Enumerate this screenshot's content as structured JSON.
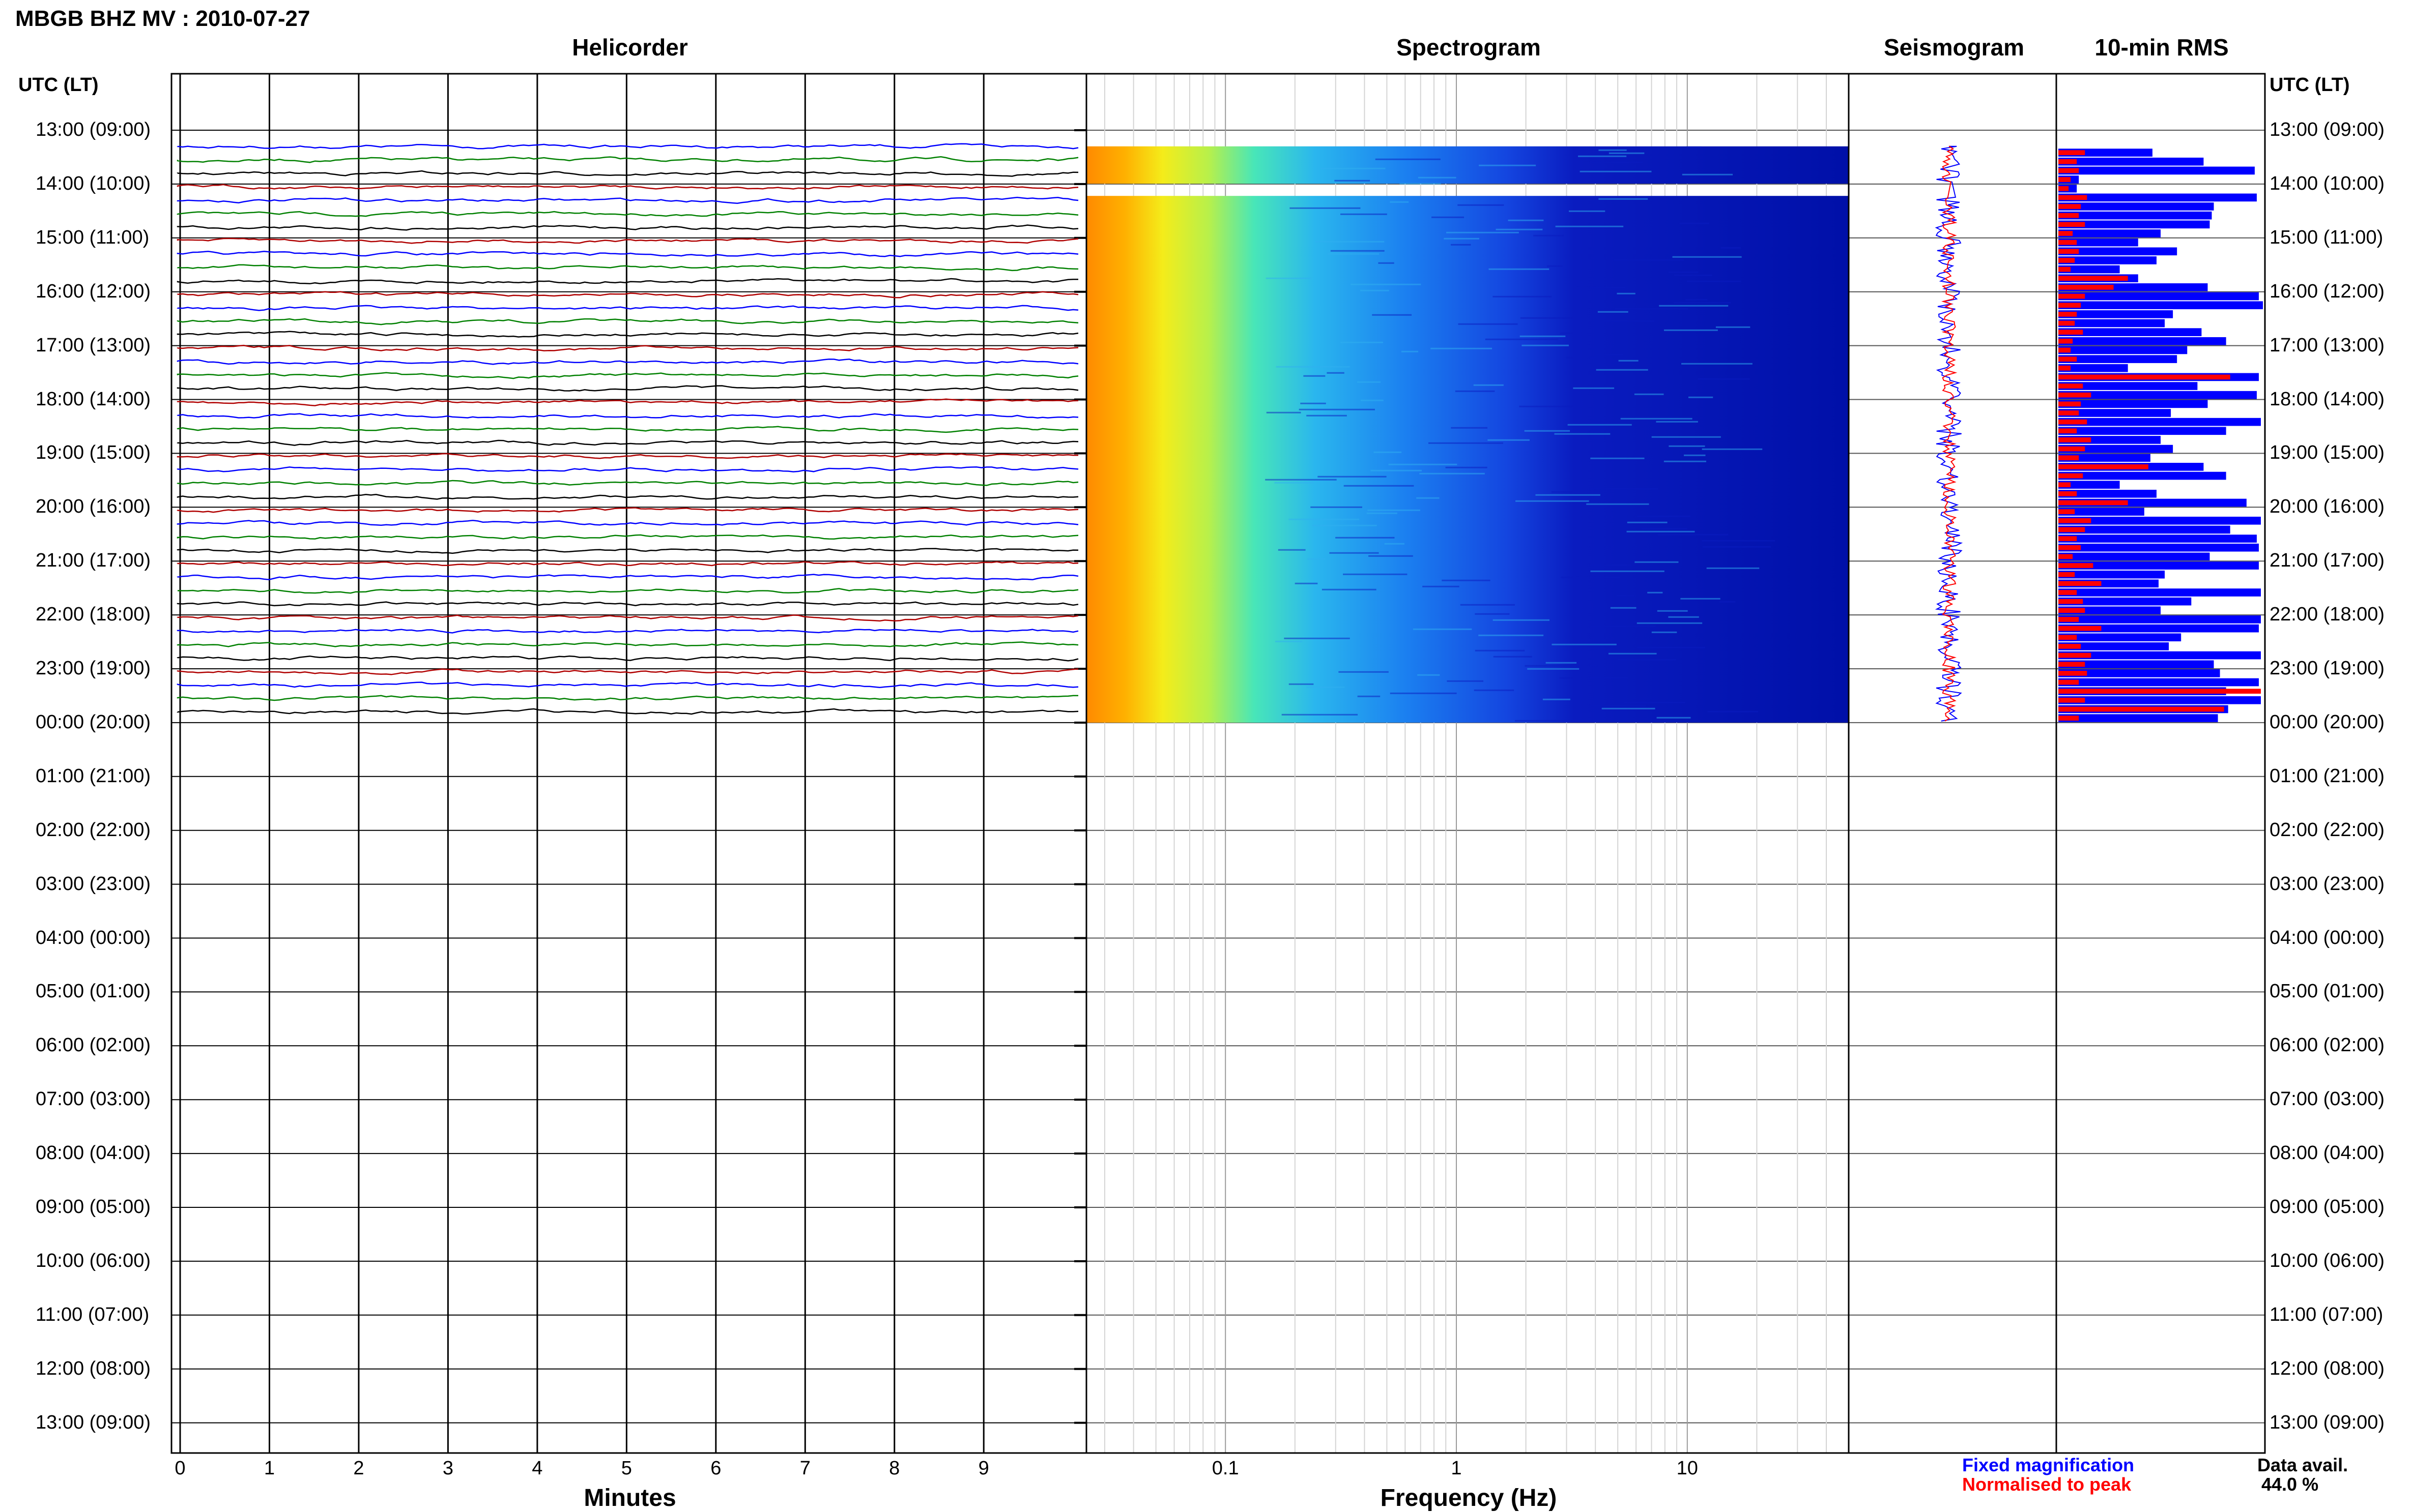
{
  "title": "MBGB BHZ MV : 2010-07-27",
  "panels": {
    "helicorder": "Helicorder",
    "spectrogram": "Spectrogram",
    "seismogram": "Seismogram",
    "rms": "10-min RMS"
  },
  "time_axis": {
    "label_left": "UTC (LT)",
    "label_right": "UTC (LT)",
    "ticks": [
      "13:00 (09:00)",
      "14:00 (10:00)",
      "15:00 (11:00)",
      "16:00 (12:00)",
      "17:00 (13:00)",
      "18:00 (14:00)",
      "19:00 (15:00)",
      "20:00 (16:00)",
      "21:00 (17:00)",
      "22:00 (18:00)",
      "23:00 (19:00)",
      "00:00 (20:00)",
      "01:00 (21:00)",
      "02:00 (22:00)",
      "03:00 (23:00)",
      "04:00 (00:00)",
      "05:00 (01:00)",
      "06:00 (02:00)",
      "07:00 (03:00)",
      "08:00 (04:00)",
      "09:00 (05:00)",
      "10:00 (06:00)",
      "11:00 (07:00)",
      "12:00 (08:00)",
      "13:00 (09:00)"
    ]
  },
  "helicorder_axis": {
    "xlabel": "Minutes",
    "ticks": [
      "0",
      "1",
      "2",
      "3",
      "4",
      "5",
      "6",
      "7",
      "8",
      "9"
    ],
    "trace_colors": [
      "#0000ff",
      "#008000",
      "#000000",
      "#b00000"
    ]
  },
  "spectrogram_axis": {
    "xlabel": "Frequency (Hz)",
    "ticks": [
      "0.1",
      "1",
      "10"
    ],
    "scale": "log",
    "range_hz": [
      0.025,
      50
    ]
  },
  "legend": {
    "fixed": "Fixed magnification",
    "fixed_color": "#0000ff",
    "normalised": "Normalised to peak",
    "normalised_color": "#ff0000",
    "avail_label": "Data avail.",
    "avail_value": "44.0 %"
  },
  "chart_data": {
    "type": "helicorder",
    "station": "MBGB BHZ MV",
    "date": "2010-07-27",
    "data_start_hour": 13.3,
    "data_end_hour": 24.0,
    "gap_hour": 14.05,
    "rms_fixed": [
      0.46,
      0.71,
      0.96,
      0.1,
      0.09,
      0.97,
      0.76,
      0.75,
      0.74,
      0.5,
      0.39,
      0.58,
      0.48,
      0.3,
      0.39,
      0.73,
      0.98,
      1.0,
      0.56,
      0.52,
      0.7,
      0.82,
      0.63,
      0.58,
      0.34,
      0.98,
      0.68,
      0.97,
      0.73,
      0.55,
      0.99,
      0.82,
      0.5,
      0.56,
      0.45,
      0.71,
      0.82,
      0.3,
      0.48,
      0.92,
      0.42,
      0.99,
      0.84,
      0.97,
      0.98,
      0.74,
      0.98,
      0.52,
      0.49,
      0.99,
      0.65,
      0.5,
      0.99,
      0.98,
      0.6,
      0.54,
      0.99,
      0.76,
      0.79,
      0.98,
      0.82,
      0.99,
      0.83,
      0.78
    ],
    "rms_normalised": [
      0.13,
      0.09,
      0.1,
      0.06,
      0.05,
      0.14,
      0.11,
      0.1,
      0.13,
      0.07,
      0.09,
      0.1,
      0.08,
      0.06,
      0.34,
      0.27,
      0.13,
      0.11,
      0.09,
      0.08,
      0.12,
      0.07,
      0.06,
      0.09,
      0.06,
      0.84,
      0.12,
      0.16,
      0.11,
      0.1,
      0.14,
      0.09,
      0.16,
      0.13,
      0.1,
      0.44,
      0.12,
      0.06,
      0.09,
      0.34,
      0.08,
      0.16,
      0.13,
      0.09,
      0.11,
      0.07,
      0.17,
      0.08,
      0.21,
      0.09,
      0.12,
      0.13,
      0.1,
      0.21,
      0.09,
      0.11,
      0.16,
      0.13,
      0.14,
      0.1,
      0.99,
      0.13,
      0.81,
      0.1
    ]
  }
}
